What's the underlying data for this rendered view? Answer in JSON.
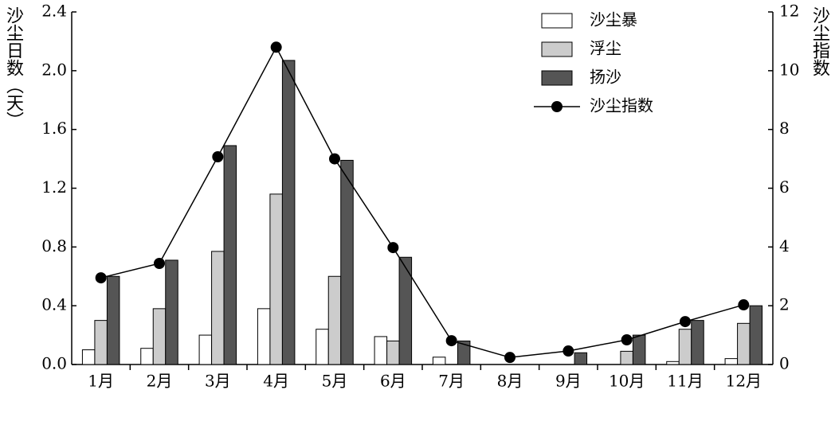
{
  "chart_data": {
    "type": "bar_line",
    "y_label": "沙尘日数（天）",
    "y2_label": "沙尘指数",
    "categories": [
      "1月",
      "2月",
      "3月",
      "4月",
      "5月",
      "6月",
      "7月",
      "8月",
      "9月",
      "10月",
      "11月",
      "12月"
    ],
    "series": [
      {
        "name": "沙尘暴",
        "type": "bar",
        "color": "#ffffff",
        "values": [
          0.1,
          0.11,
          0.2,
          0.38,
          0.24,
          0.19,
          0.05,
          0,
          0,
          0,
          0.02,
          0.04
        ]
      },
      {
        "name": "浮尘",
        "type": "bar",
        "color": "#cccccc",
        "values": [
          0.3,
          0.38,
          0.77,
          1.16,
          0.6,
          0.16,
          0,
          0,
          0,
          0.09,
          0.24,
          0.28
        ]
      },
      {
        "name": "扬沙",
        "type": "bar",
        "color": "#555555",
        "values": [
          0.6,
          0.71,
          1.49,
          2.07,
          1.39,
          0.73,
          0.16,
          0,
          0.08,
          0.2,
          0.3,
          0.4
        ]
      },
      {
        "name": "沙尘指数",
        "type": "line",
        "axis": "y2",
        "color": "#000000",
        "values": [
          2.95,
          3.44,
          7.07,
          10.8,
          7.0,
          3.98,
          0.81,
          0.24,
          0.46,
          0.84,
          1.46,
          2.03
        ]
      }
    ],
    "ylim": [
      0,
      2.4
    ],
    "yticks": [
      {
        "value": 0,
        "label": "0.0"
      },
      0.4,
      0.8,
      1.2,
      1.6,
      {
        "value": 2,
        "label": "2.0"
      },
      2.4
    ],
    "y2lim": [
      0,
      12
    ],
    "y2ticks": [
      0,
      2,
      4,
      6,
      8,
      10,
      12
    ],
    "legend": "top-right"
  }
}
